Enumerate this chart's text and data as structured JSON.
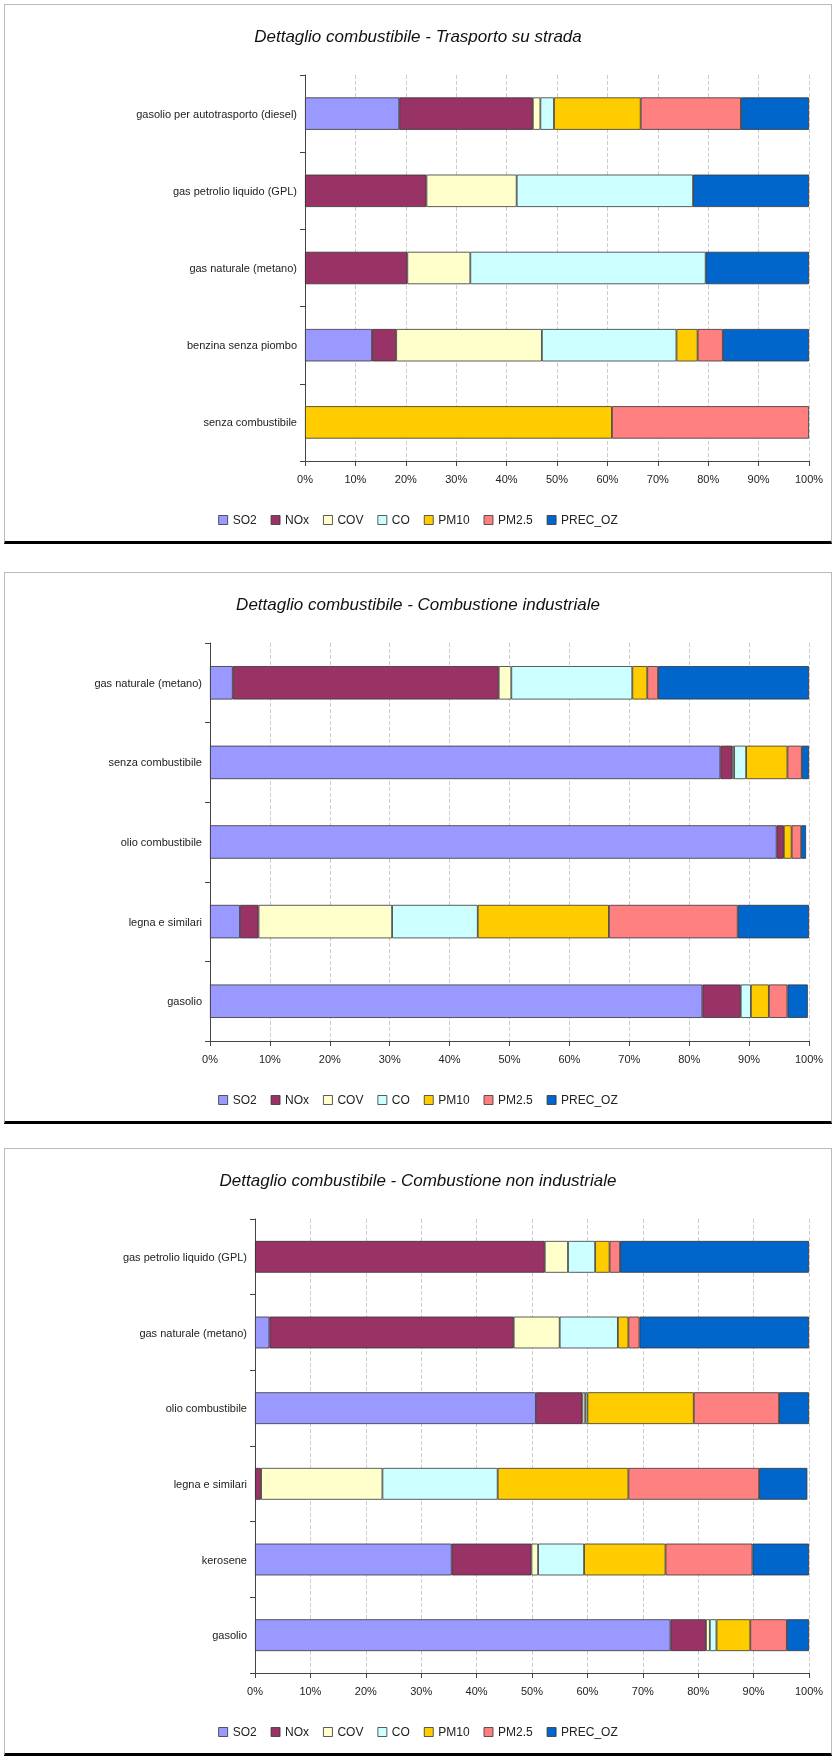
{
  "chart_data": [
    {
      "type": "bar",
      "orientation": "horizontal",
      "stacked": true,
      "title": "Dettaglio combustibile - Trasporto su strada",
      "categories": [
        "gasolio per autotrasporto (diesel)",
        "gas petrolio liquido (GPL)",
        "gas naturale (metano)",
        "benzina senza piombo",
        "senza combustibile"
      ],
      "series": [
        {
          "name": "SO2",
          "color": "#9999ff",
          "values": [
            18.7,
            0,
            0,
            13.3,
            0
          ]
        },
        {
          "name": "NOx",
          "color": "#993366",
          "values": [
            26.5,
            24.1,
            20.3,
            4.8,
            0
          ]
        },
        {
          "name": "COV",
          "color": "#ffffcc",
          "values": [
            1.5,
            17.9,
            12.5,
            28.9,
            0
          ]
        },
        {
          "name": "CO",
          "color": "#ccffff",
          "values": [
            2.7,
            35.0,
            46.7,
            26.7,
            0
          ]
        },
        {
          "name": "PM10",
          "color": "#ffcc00",
          "values": [
            17.2,
            0,
            0,
            4.2,
            60.9
          ]
        },
        {
          "name": "PM2.5",
          "color": "#ff8080",
          "values": [
            19.9,
            0,
            0,
            5.0,
            39.1
          ]
        },
        {
          "name": "PREC_OZ",
          "color": "#0066cc",
          "values": [
            13.5,
            23.0,
            20.5,
            17.1,
            0
          ]
        }
      ],
      "xlim": [
        0,
        100
      ],
      "xticks": [
        {
          "value": 0,
          "label": "0%"
        },
        {
          "value": 10,
          "label": "10%"
        },
        {
          "value": 20,
          "label": "20%"
        },
        {
          "value": 30,
          "label": "30%"
        },
        {
          "value": 40,
          "label": "40%"
        },
        {
          "value": 50,
          "label": "50%"
        },
        {
          "value": 60,
          "label": "60%"
        },
        {
          "value": 70,
          "label": "70%"
        },
        {
          "value": 80,
          "label": "80%"
        },
        {
          "value": 90,
          "label": "90%"
        },
        {
          "value": 100,
          "label": "100%"
        }
      ],
      "grid": "x",
      "legend": "bottom"
    },
    {
      "type": "bar",
      "orientation": "horizontal",
      "stacked": true,
      "title": "Dettaglio combustibile - Combustione industriale",
      "categories": [
        "gas naturale (metano)",
        "senza combustibile",
        "olio combustibile",
        "legna e similari",
        "gasolio"
      ],
      "series": [
        {
          "name": "SO2",
          "color": "#9999ff",
          "values": [
            3.8,
            85.2,
            94.6,
            5.0,
            82.2
          ]
        },
        {
          "name": "NOx",
          "color": "#993366",
          "values": [
            44.4,
            2.0,
            1.2,
            3.1,
            6.4
          ]
        },
        {
          "name": "COV",
          "color": "#ffffcc",
          "values": [
            2.1,
            0.3,
            null,
            22.3,
            null
          ]
        },
        {
          "name": "CO",
          "color": "#ccffff",
          "values": [
            20.2,
            2.0,
            null,
            14.3,
            1.7
          ]
        },
        {
          "name": "PM10",
          "color": "#ffcc00",
          "values": [
            2.5,
            6.9,
            1.3,
            21.9,
            3.0
          ]
        },
        {
          "name": "PM2.5",
          "color": "#ff8080",
          "values": [
            1.8,
            2.4,
            1.6,
            21.5,
            3.1
          ]
        },
        {
          "name": "PREC_OZ",
          "color": "#0066cc",
          "values": [
            25.2,
            1.2,
            0.8,
            11.9,
            3.4
          ]
        }
      ],
      "xlim": [
        0,
        100
      ],
      "xticks": [
        {
          "value": 0,
          "label": "0%"
        },
        {
          "value": 10,
          "label": "10%"
        },
        {
          "value": 20,
          "label": "20%"
        },
        {
          "value": 30,
          "label": "30%"
        },
        {
          "value": 40,
          "label": "40%"
        },
        {
          "value": 50,
          "label": "50%"
        },
        {
          "value": 60,
          "label": "60%"
        },
        {
          "value": 70,
          "label": "70%"
        },
        {
          "value": 80,
          "label": "80%"
        },
        {
          "value": 90,
          "label": "90%"
        },
        {
          "value": 100,
          "label": "100%"
        }
      ],
      "grid": "x",
      "legend": "bottom"
    },
    {
      "type": "bar",
      "orientation": "horizontal",
      "stacked": true,
      "title": "Dettaglio combustibile - Combustione non industriale",
      "categories": [
        "gas petrolio liquido (GPL)",
        "gas naturale (metano)",
        "olio combustibile",
        "legna e similari",
        "kerosene",
        "gasolio"
      ],
      "series": [
        {
          "name": "SO2",
          "color": "#9999ff",
          "values": [
            0,
            2.6,
            50.7,
            null,
            35.5,
            75.0
          ]
        },
        {
          "name": "NOx",
          "color": "#993366",
          "values": [
            52.3,
            44.1,
            8.4,
            1.1,
            14.4,
            6.4
          ]
        },
        {
          "name": "COV",
          "color": "#ffffcc",
          "values": [
            4.2,
            8.3,
            0.5,
            21.9,
            1.2,
            0.7
          ]
        },
        {
          "name": "CO",
          "color": "#ccffff",
          "values": [
            4.9,
            10.5,
            0.4,
            20.8,
            8.3,
            1.2
          ]
        },
        {
          "name": "PM10",
          "color": "#ffcc00",
          "values": [
            2.6,
            1.9,
            19.2,
            23.6,
            14.7,
            6.1
          ]
        },
        {
          "name": "PM2.5",
          "color": "#ff8080",
          "values": [
            1.9,
            2.0,
            15.4,
            23.6,
            15.7,
            6.6
          ]
        },
        {
          "name": "PREC_OZ",
          "color": "#0066cc",
          "values": [
            34.1,
            30.6,
            5.4,
            8.7,
            10.2,
            4.0
          ]
        }
      ],
      "xlim": [
        0,
        100
      ],
      "xticks": [
        {
          "value": 0,
          "label": "0%"
        },
        {
          "value": 10,
          "label": "10%"
        },
        {
          "value": 20,
          "label": "20%"
        },
        {
          "value": 30,
          "label": "30%"
        },
        {
          "value": 40,
          "label": "40%"
        },
        {
          "value": 50,
          "label": "50%"
        },
        {
          "value": 60,
          "label": "60%"
        },
        {
          "value": 70,
          "label": "70%"
        },
        {
          "value": 80,
          "label": "80%"
        },
        {
          "value": 90,
          "label": "90%"
        },
        {
          "value": 100,
          "label": "100%"
        }
      ],
      "grid": "x",
      "legend": "bottom"
    }
  ]
}
